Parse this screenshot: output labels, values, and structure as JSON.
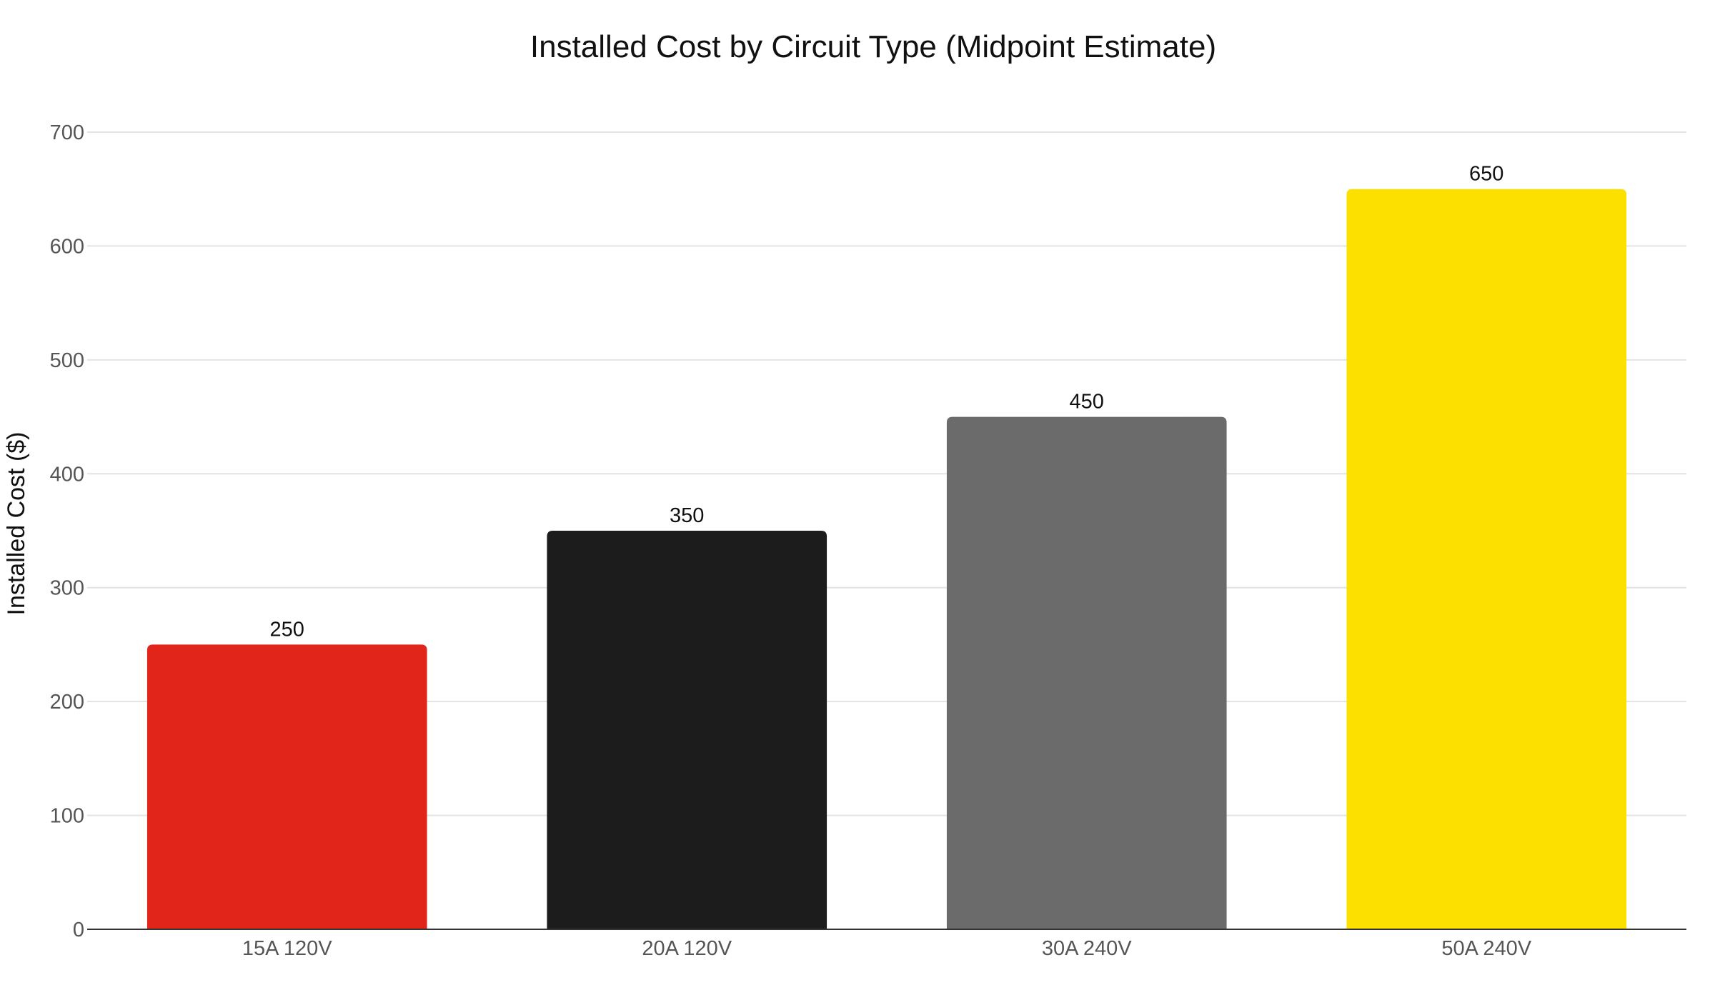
{
  "chart_data": {
    "type": "bar",
    "title": "Installed Cost by Circuit Type (Midpoint Estimate)",
    "xlabel": "",
    "ylabel": "Installed Cost ($)",
    "categories": [
      "15A 120V",
      "20A 120V",
      "30A 240V",
      "50A 240V"
    ],
    "values": [
      250,
      350,
      450,
      650
    ],
    "data_labels": [
      "250",
      "350",
      "450",
      "650"
    ],
    "bar_colors": [
      "#e1251b",
      "#1c1c1c",
      "#6b6b6b",
      "#fce000"
    ],
    "ylim": [
      0,
      700
    ],
    "yticks": [
      0,
      100,
      200,
      300,
      400,
      500,
      600,
      700
    ],
    "grid": true,
    "legend": "none"
  }
}
